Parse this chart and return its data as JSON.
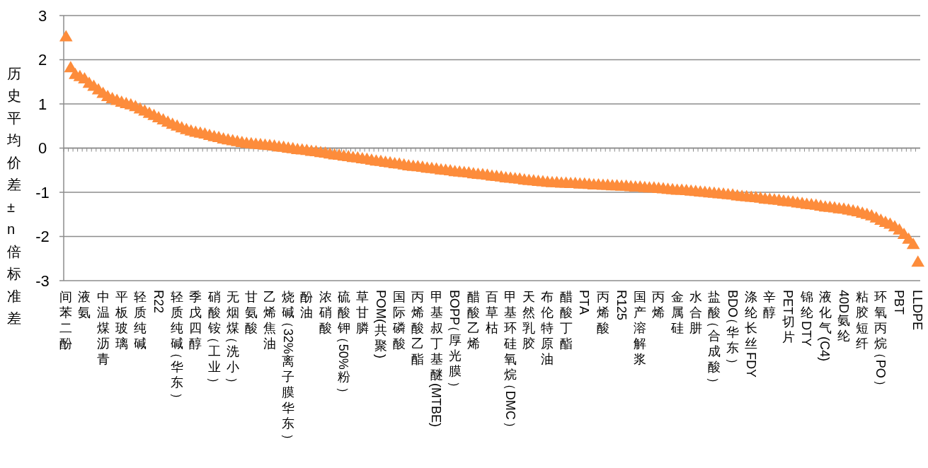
{
  "chart_data": {
    "type": "scatter",
    "ylabel": "历史平均价差±n倍标准差",
    "marker": "triangle",
    "grid": "y",
    "ylim": [
      -3,
      3
    ],
    "yticks": [
      -3,
      -2,
      -1,
      0,
      1,
      2,
      3
    ],
    "categories": [
      "间苯二酚",
      null,
      null,
      null,
      "液氨",
      null,
      null,
      null,
      "中温煤沥青",
      null,
      null,
      null,
      "平板玻璃",
      null,
      null,
      null,
      "轻质纯碱",
      null,
      null,
      null,
      "R22",
      null,
      null,
      null,
      "轻质纯碱（华东）",
      null,
      null,
      null,
      "季戊四醇",
      null,
      null,
      null,
      "硝酸铵（工业）",
      null,
      null,
      null,
      "无烟煤（洗小）",
      null,
      null,
      null,
      "甘氨酸",
      null,
      null,
      null,
      "乙烯焦油",
      null,
      null,
      null,
      "烧碱（32%离子膜华东）",
      null,
      null,
      null,
      "酚油",
      null,
      null,
      null,
      "浓硝酸",
      null,
      null,
      null,
      "硫酸钾（50%粉）",
      null,
      null,
      null,
      "草甘膦",
      null,
      null,
      null,
      "POM(共聚)",
      null,
      null,
      null,
      "国际磷酸",
      null,
      null,
      null,
      "丙烯酸乙酯",
      null,
      null,
      null,
      "甲基叔丁基醚(MTBE)",
      null,
      null,
      null,
      "BOPP（厚光膜）",
      null,
      null,
      null,
      "醋酸乙烯",
      null,
      null,
      null,
      "百草枯",
      null,
      null,
      null,
      "甲基环硅氧烷（DMC）",
      null,
      null,
      null,
      "天然乳胶",
      null,
      null,
      null,
      "布伦特原油",
      null,
      null,
      null,
      "醋酸丁酯",
      null,
      null,
      null,
      "PTA",
      null,
      null,
      null,
      "丙烯酸",
      null,
      null,
      null,
      "R125",
      null,
      null,
      null,
      "国产溶解浆",
      null,
      null,
      null,
      "丙烯",
      null,
      null,
      null,
      "金属硅",
      null,
      null,
      null,
      "水合肼",
      null,
      null,
      null,
      "盐酸（合成酸）",
      null,
      null,
      null,
      "BDO（华东）",
      null,
      null,
      null,
      "涤纶长丝FDY",
      null,
      null,
      null,
      "辛醇",
      null,
      null,
      null,
      "PET切片",
      null,
      null,
      null,
      "锦纶DTY",
      null,
      null,
      null,
      "液化气(C4)",
      null,
      null,
      null,
      "40D氨纶",
      null,
      null,
      null,
      "粘胶短纤",
      null,
      null,
      null,
      "环氧丙烷（PO）",
      null,
      null,
      null,
      "PBT",
      null,
      null,
      null,
      "LLDPE"
    ],
    "series": [
      {
        "color": "#fd8c3b",
        "values": [
          2.5,
          1.8,
          1.65,
          1.6,
          1.55,
          1.45,
          1.38,
          1.3,
          1.22,
          1.15,
          1.1,
          1.06,
          1.02,
          0.99,
          0.96,
          0.92,
          0.87,
          0.82,
          0.77,
          0.72,
          0.67,
          0.62,
          0.57,
          0.52,
          0.48,
          0.44,
          0.4,
          0.37,
          0.34,
          0.32,
          0.3,
          0.27,
          0.24,
          0.22,
          0.19,
          0.17,
          0.15,
          0.13,
          0.11,
          0.09,
          0.08,
          0.07,
          0.06,
          0.05,
          0.04,
          0.03,
          0.01,
          0.0,
          -0.02,
          -0.03,
          -0.05,
          -0.06,
          -0.07,
          -0.09,
          -0.1,
          -0.12,
          -0.13,
          -0.15,
          -0.17,
          -0.18,
          -0.2,
          -0.21,
          -0.23,
          -0.24,
          -0.26,
          -0.27,
          -0.29,
          -0.31,
          -0.32,
          -0.34,
          -0.35,
          -0.37,
          -0.38,
          -0.4,
          -0.42,
          -0.43,
          -0.44,
          -0.45,
          -0.47,
          -0.48,
          -0.49,
          -0.51,
          -0.52,
          -0.53,
          -0.55,
          -0.56,
          -0.57,
          -0.58,
          -0.6,
          -0.61,
          -0.62,
          -0.63,
          -0.65,
          -0.66,
          -0.67,
          -0.69,
          -0.7,
          -0.71,
          -0.72,
          -0.74,
          -0.75,
          -0.76,
          -0.77,
          -0.78,
          -0.79,
          -0.8,
          -0.8,
          -0.81,
          -0.81,
          -0.82,
          -0.82,
          -0.83,
          -0.83,
          -0.84,
          -0.85,
          -0.85,
          -0.86,
          -0.86,
          -0.87,
          -0.87,
          -0.88,
          -0.88,
          -0.89,
          -0.9,
          -0.9,
          -0.91,
          -0.92,
          -0.92,
          -0.93,
          -0.94,
          -0.95,
          -0.96,
          -0.97,
          -0.97,
          -0.98,
          -0.99,
          -1.0,
          -1.01,
          -1.02,
          -1.03,
          -1.04,
          -1.05,
          -1.06,
          -1.07,
          -1.08,
          -1.1,
          -1.11,
          -1.12,
          -1.13,
          -1.14,
          -1.15,
          -1.17,
          -1.18,
          -1.19,
          -1.2,
          -1.22,
          -1.23,
          -1.24,
          -1.26,
          -1.27,
          -1.29,
          -1.3,
          -1.31,
          -1.33,
          -1.35,
          -1.36,
          -1.37,
          -1.39,
          -1.4,
          -1.42,
          -1.44,
          -1.46,
          -1.49,
          -1.52,
          -1.55,
          -1.6,
          -1.65,
          -1.7,
          -1.74,
          -1.8,
          -1.87,
          -1.97,
          -2.08,
          -2.2,
          -2.6
        ]
      }
    ]
  }
}
